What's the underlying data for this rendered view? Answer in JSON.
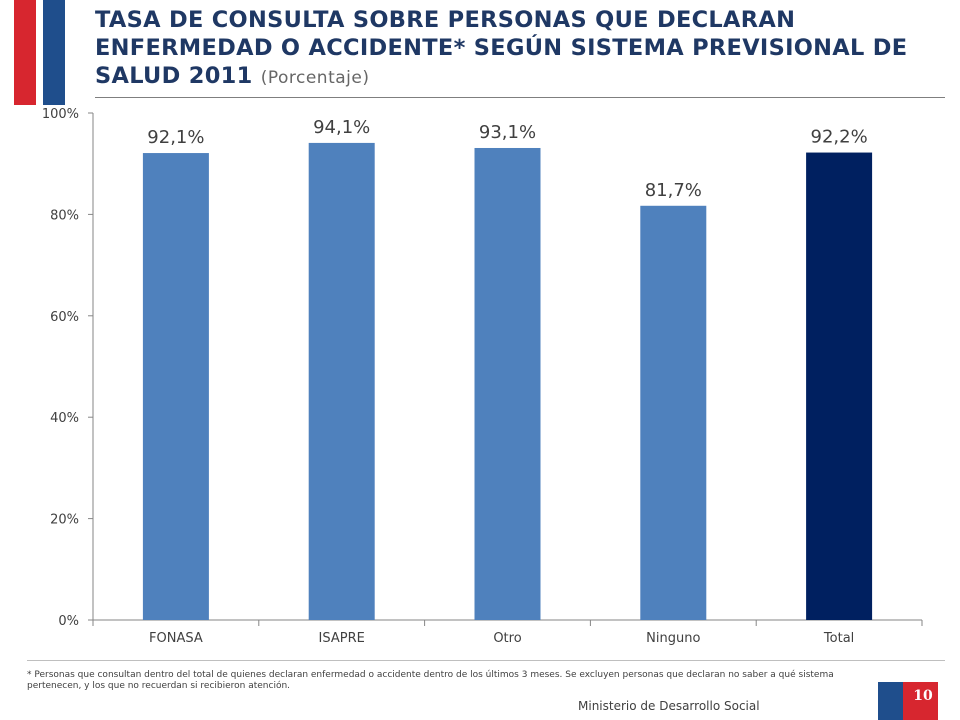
{
  "header": {
    "title": "TASA DE CONSULTA SOBRE PERSONAS QUE DECLARAN ENFERMEDAD O ACCIDENTE* SEGÚN SISTEMA PREVISIONAL DE SALUD 2011",
    "subtitle": "(Porcentaje)"
  },
  "chart_data": {
    "type": "bar",
    "categories": [
      "FONASA",
      "ISAPRE",
      "Otro",
      "Ninguno",
      "Total"
    ],
    "values": [
      92.1,
      94.1,
      93.1,
      81.7,
      92.2
    ],
    "data_labels": [
      "92,1%",
      "94,1%",
      "93,1%",
      "81,7%",
      "92,2%"
    ],
    "yticks": [
      "0%",
      "20%",
      "40%",
      "60%",
      "80%",
      "100%"
    ],
    "ylim": [
      0,
      100
    ],
    "grid": false,
    "colors": {
      "bar": "#4f81bd",
      "total_bar": "#002060"
    }
  },
  "footer": {
    "footnote": "* Personas que consultan dentro del total de quienes declaran enfermedad o accidente dentro de los últimos 3 meses. Se excluyen personas que declaran no saber a qué sistema pertenecen, y los que no recuerdan si recibieron atención.",
    "organization": "Ministerio de Desarrollo Social",
    "page_number": "10"
  },
  "colors": {
    "flag_red": "#d7262f",
    "flag_blue": "#1f4e8c",
    "title": "#1f3864"
  }
}
